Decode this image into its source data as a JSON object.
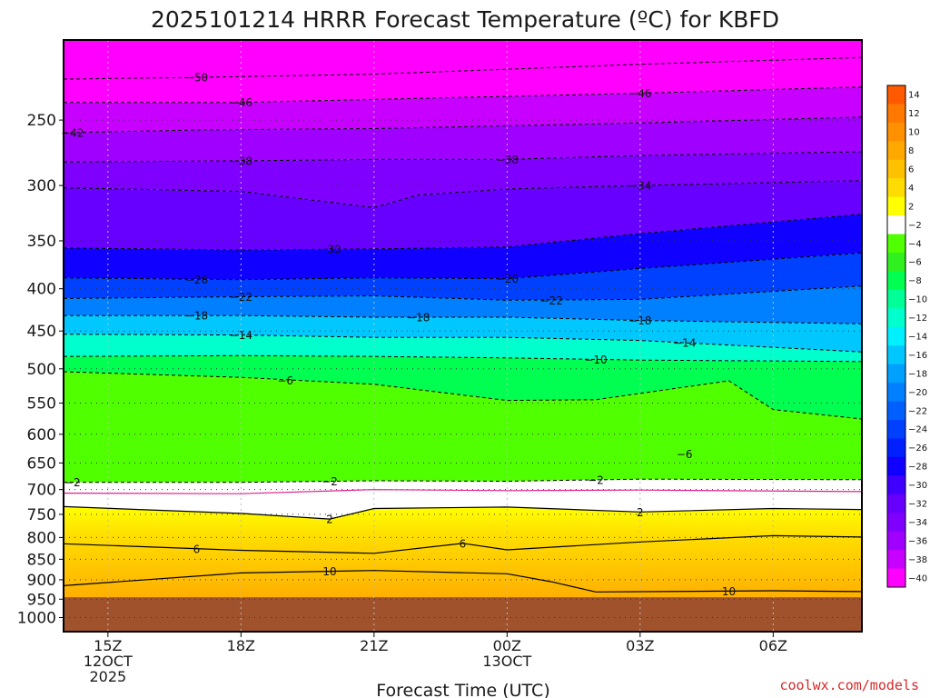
{
  "chart_data": {
    "type": "heatmap",
    "title": "2025101214 HRRR Forecast Temperature (ºC) for KBFD",
    "xlabel": "Forecast Time (UTC)",
    "ylabel": "",
    "x_ticks": [
      {
        "hour": 1,
        "lines": [
          "15Z",
          "12OCT",
          "2025"
        ]
      },
      {
        "hour": 4,
        "lines": [
          "18Z"
        ]
      },
      {
        "hour": 7,
        "lines": [
          "21Z"
        ]
      },
      {
        "hour": 10,
        "lines": [
          "00Z",
          "13OCT"
        ]
      },
      {
        "hour": 13,
        "lines": [
          "03Z"
        ]
      },
      {
        "hour": 16,
        "lines": [
          "06Z"
        ]
      }
    ],
    "xlim_hours": [
      0,
      18
    ],
    "y_ticks": [
      250,
      300,
      350,
      400,
      450,
      500,
      550,
      600,
      650,
      700,
      750,
      800,
      850,
      900,
      950,
      1000
    ],
    "ylim_hpa": [
      200,
      1040
    ],
    "y_scale": "log",
    "grid": true,
    "terrain_below_hpa": 945,
    "colorbar": {
      "labels": [
        "14",
        "12",
        "10",
        "8",
        "6",
        "4",
        "2",
        "−2",
        "−4",
        "−6",
        "−8",
        "−10",
        "−12",
        "−14",
        "−16",
        "−18",
        "−20",
        "−22",
        "−24",
        "−26",
        "−28",
        "−30",
        "−32",
        "−34",
        "−36",
        "−38",
        "−40"
      ],
      "colors": [
        "#ff5a00",
        "#ff7800",
        "#ff9000",
        "#ffa800",
        "#ffc000",
        "#ffdc00",
        "#ffff00",
        "#ffffff",
        "#50ff00",
        "#30f020",
        "#00ff50",
        "#00ff96",
        "#00ffcc",
        "#00f0ff",
        "#00c8ff",
        "#00a0ff",
        "#0080ff",
        "#0060ff",
        "#0040ff",
        "#0020ff",
        "#1000ff",
        "#4000ff",
        "#6800ff",
        "#8000ff",
        "#a000ff",
        "#c800ff",
        "#ff00ff"
      ]
    },
    "isotherms": [
      {
        "t": -50,
        "label": "−50",
        "points": [
          [
            0,
            223
          ],
          [
            3,
            222
          ],
          [
            7,
            220
          ],
          [
            10,
            217
          ],
          [
            13,
            214
          ],
          [
            18,
            210
          ]
        ]
      },
      {
        "t": -46,
        "label": "−46",
        "points": [
          [
            0,
            238
          ],
          [
            4,
            238
          ],
          [
            7,
            236
          ],
          [
            10,
            234
          ],
          [
            13,
            232
          ],
          [
            18,
            228
          ]
        ]
      },
      {
        "t": -42,
        "label": "−42",
        "points": [
          [
            0,
            259
          ],
          [
            3,
            257
          ],
          [
            7,
            256
          ],
          [
            10,
            254
          ],
          [
            13,
            252
          ],
          [
            18,
            248
          ]
        ]
      },
      {
        "t": -38,
        "label": "−38",
        "points": [
          [
            0,
            281
          ],
          [
            4,
            280
          ],
          [
            7,
            279
          ],
          [
            10,
            279
          ],
          [
            13,
            276
          ],
          [
            18,
            273
          ]
        ]
      },
      {
        "t": -34,
        "label": "−34",
        "points": [
          [
            0,
            302
          ],
          [
            4,
            305
          ],
          [
            7,
            319
          ],
          [
            8,
            308
          ],
          [
            10,
            303
          ],
          [
            13,
            300
          ],
          [
            18,
            296
          ]
        ]
      },
      {
        "t": -30,
        "label": "−30",
        "points": [
          [
            0,
            357
          ],
          [
            4,
            359
          ],
          [
            7,
            358
          ],
          [
            10,
            356
          ],
          [
            13,
            343
          ],
          [
            18,
            325
          ]
        ]
      },
      {
        "t": -26,
        "label": "−26",
        "points": [
          [
            0,
            388
          ],
          [
            4,
            390
          ],
          [
            7,
            388
          ],
          [
            10,
            389
          ],
          [
            13,
            378
          ],
          [
            18,
            362
          ]
        ]
      },
      {
        "t": -22,
        "label": "−22",
        "points": [
          [
            0,
            411
          ],
          [
            4,
            409
          ],
          [
            7,
            408
          ],
          [
            10,
            413
          ],
          [
            13,
            412
          ],
          [
            18,
            397
          ]
        ]
      },
      {
        "t": -18,
        "label": "−18",
        "points": [
          [
            0,
            431
          ],
          [
            4,
            431
          ],
          [
            7,
            433
          ],
          [
            10,
            433
          ],
          [
            13,
            437
          ],
          [
            18,
            441
          ]
        ]
      },
      {
        "t": -14,
        "label": "−14",
        "points": [
          [
            0,
            454
          ],
          [
            4,
            455
          ],
          [
            7,
            458
          ],
          [
            10,
            458
          ],
          [
            13,
            462
          ],
          [
            18,
            477
          ]
        ]
      },
      {
        "t": -10,
        "label": "−10",
        "points": [
          [
            0,
            483
          ],
          [
            4,
            482
          ],
          [
            7,
            483
          ],
          [
            10,
            485
          ],
          [
            13,
            488
          ],
          [
            18,
            490
          ]
        ]
      },
      {
        "t": -6,
        "label": "−6",
        "points": [
          [
            0,
            504
          ],
          [
            4,
            512
          ],
          [
            7,
            522
          ],
          [
            10,
            546
          ],
          [
            12,
            545
          ],
          [
            15,
            517
          ],
          [
            16,
            560
          ],
          [
            18,
            575
          ]
        ]
      },
      {
        "t": -2,
        "label": "−2",
        "points": [
          [
            0,
            686
          ],
          [
            4,
            686
          ],
          [
            7,
            683
          ],
          [
            10,
            684
          ],
          [
            13,
            680
          ],
          [
            18,
            681
          ]
        ]
      },
      {
        "t": 0,
        "label": "",
        "points": [
          [
            0,
            707
          ],
          [
            4,
            708
          ],
          [
            7,
            700
          ],
          [
            10,
            702
          ],
          [
            13,
            701
          ],
          [
            18,
            704
          ]
        ]
      },
      {
        "t": 2,
        "label": "2",
        "points": [
          [
            0,
            734
          ],
          [
            4,
            748
          ],
          [
            6,
            760
          ],
          [
            7,
            738
          ],
          [
            10,
            735
          ],
          [
            13,
            745
          ],
          [
            16,
            738
          ],
          [
            18,
            740
          ]
        ]
      },
      {
        "t": 6,
        "label": "6",
        "points": [
          [
            0,
            814
          ],
          [
            4,
            829
          ],
          [
            7,
            836
          ],
          [
            9,
            813
          ],
          [
            10,
            828
          ],
          [
            13,
            810
          ],
          [
            16,
            796
          ],
          [
            18,
            799
          ]
        ]
      },
      {
        "t": 10,
        "label": "10",
        "points": [
          [
            0,
            915
          ],
          [
            4,
            883
          ],
          [
            7,
            877
          ],
          [
            10,
            885
          ],
          [
            11,
            905
          ],
          [
            12,
            931
          ],
          [
            16,
            928
          ],
          [
            18,
            930
          ]
        ]
      }
    ],
    "isotherm_labels": [
      {
        "t": -50,
        "at": [
          [
            3,
            222
          ]
        ]
      },
      {
        "t": -46,
        "at": [
          [
            4,
            238
          ],
          [
            13,
            232
          ]
        ]
      },
      {
        "t": -42,
        "at": [
          [
            0.2,
            259
          ]
        ]
      },
      {
        "t": -38,
        "at": [
          [
            4,
            280
          ],
          [
            10,
            279
          ]
        ]
      },
      {
        "t": -34,
        "at": [
          [
            13,
            300
          ]
        ]
      },
      {
        "t": -30,
        "at": [
          [
            6,
            358
          ]
        ]
      },
      {
        "t": -26,
        "at": [
          [
            3,
            390
          ],
          [
            10,
            389
          ]
        ]
      },
      {
        "t": -22,
        "at": [
          [
            4,
            409
          ],
          [
            11,
            413
          ]
        ]
      },
      {
        "t": -18,
        "at": [
          [
            3,
            431
          ],
          [
            8,
            433
          ],
          [
            13,
            437
          ]
        ]
      },
      {
        "t": -14,
        "at": [
          [
            4,
            455
          ],
          [
            14,
            465
          ]
        ]
      },
      {
        "t": -10,
        "at": [
          [
            12,
            487
          ]
        ]
      },
      {
        "t": -6,
        "at": [
          [
            5,
            516
          ],
          [
            14,
            634
          ]
        ]
      },
      {
        "t": -2,
        "at": [
          [
            0.2,
            686
          ],
          [
            6,
            684
          ],
          [
            12,
            681
          ]
        ]
      },
      {
        "t": 2,
        "at": [
          [
            6,
            760
          ],
          [
            13,
            745
          ]
        ]
      },
      {
        "t": 6,
        "at": [
          [
            3,
            826
          ],
          [
            9,
            813
          ]
        ]
      },
      {
        "t": 10,
        "at": [
          [
            6,
            879
          ],
          [
            15,
            929
          ]
        ]
      }
    ]
  },
  "credit": "coolwx.com/models"
}
